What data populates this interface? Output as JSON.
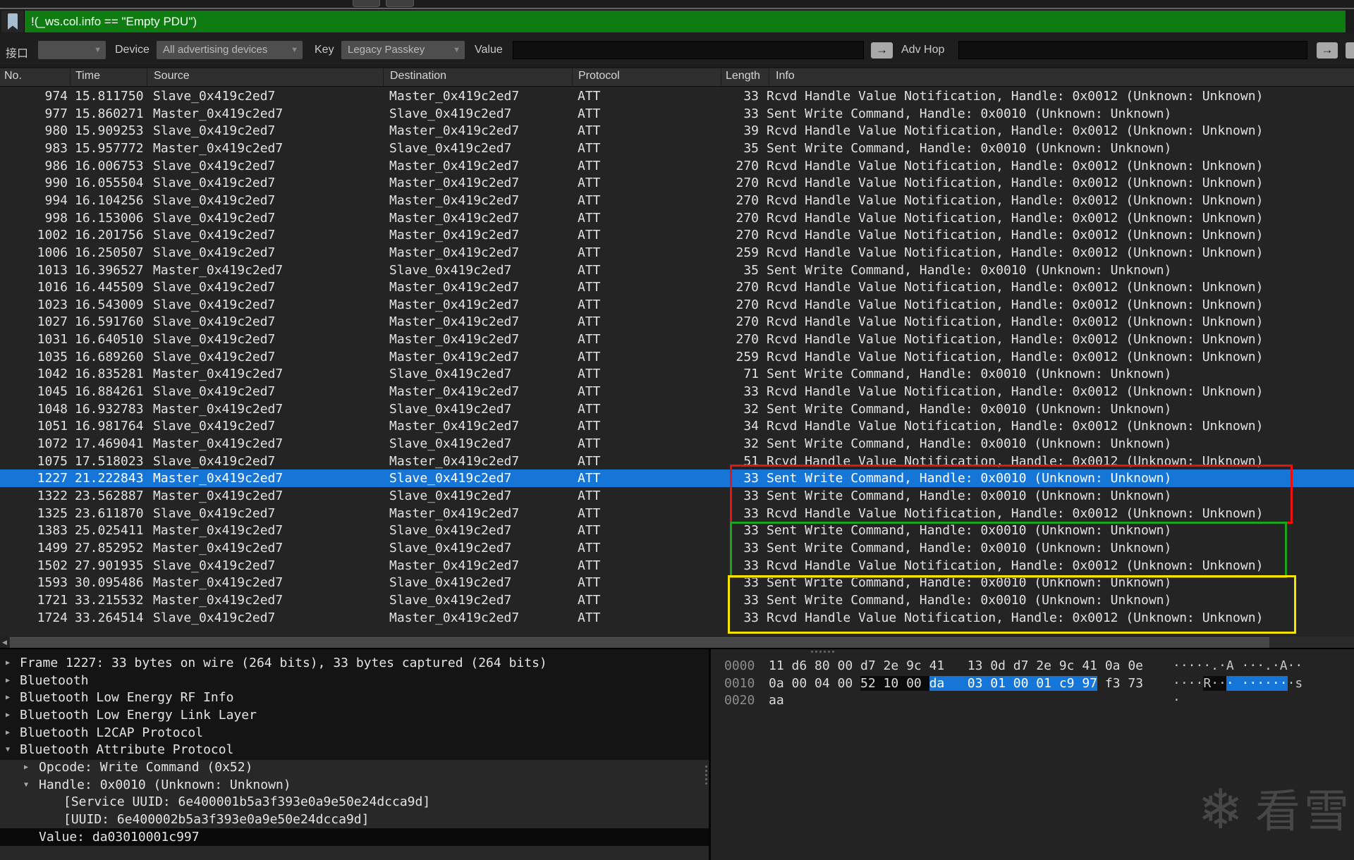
{
  "filter_bar": {
    "text": "!(_ws.col.info == \"Empty PDU\")"
  },
  "toolbar": {
    "interface_label": "接口",
    "interface_value": "",
    "device_label": "Device",
    "device_value": "All advertising devices",
    "key_label": "Key",
    "key_value": "Legacy Passkey",
    "value_label": "Value",
    "value_text": "",
    "adv_hop_label": "Adv Hop",
    "adv_hop_text": "",
    "arrow_button_glyph": "→"
  },
  "packet_list": {
    "columns": [
      "No.",
      "Time",
      "Source",
      "Destination",
      "Protocol",
      "Length",
      "Info"
    ],
    "selected_index": 22,
    "rows": [
      [
        "974",
        "15.811750",
        "Slave_0x419c2ed7",
        "Master_0x419c2ed7",
        "ATT",
        "33",
        "Rcvd Handle Value Notification, Handle: 0x0012 (Unknown: Unknown)"
      ],
      [
        "977",
        "15.860271",
        "Master_0x419c2ed7",
        "Slave_0x419c2ed7",
        "ATT",
        "33",
        "Sent Write Command, Handle: 0x0010 (Unknown: Unknown)"
      ],
      [
        "980",
        "15.909253",
        "Slave_0x419c2ed7",
        "Master_0x419c2ed7",
        "ATT",
        "39",
        "Rcvd Handle Value Notification, Handle: 0x0012 (Unknown: Unknown)"
      ],
      [
        "983",
        "15.957772",
        "Master_0x419c2ed7",
        "Slave_0x419c2ed7",
        "ATT",
        "35",
        "Sent Write Command, Handle: 0x0010 (Unknown: Unknown)"
      ],
      [
        "986",
        "16.006753",
        "Slave_0x419c2ed7",
        "Master_0x419c2ed7",
        "ATT",
        "270",
        "Rcvd Handle Value Notification, Handle: 0x0012 (Unknown: Unknown)"
      ],
      [
        "990",
        "16.055504",
        "Slave_0x419c2ed7",
        "Master_0x419c2ed7",
        "ATT",
        "270",
        "Rcvd Handle Value Notification, Handle: 0x0012 (Unknown: Unknown)"
      ],
      [
        "994",
        "16.104256",
        "Slave_0x419c2ed7",
        "Master_0x419c2ed7",
        "ATT",
        "270",
        "Rcvd Handle Value Notification, Handle: 0x0012 (Unknown: Unknown)"
      ],
      [
        "998",
        "16.153006",
        "Slave_0x419c2ed7",
        "Master_0x419c2ed7",
        "ATT",
        "270",
        "Rcvd Handle Value Notification, Handle: 0x0012 (Unknown: Unknown)"
      ],
      [
        "1002",
        "16.201756",
        "Slave_0x419c2ed7",
        "Master_0x419c2ed7",
        "ATT",
        "270",
        "Rcvd Handle Value Notification, Handle: 0x0012 (Unknown: Unknown)"
      ],
      [
        "1006",
        "16.250507",
        "Slave_0x419c2ed7",
        "Master_0x419c2ed7",
        "ATT",
        "259",
        "Rcvd Handle Value Notification, Handle: 0x0012 (Unknown: Unknown)"
      ],
      [
        "1013",
        "16.396527",
        "Master_0x419c2ed7",
        "Slave_0x419c2ed7",
        "ATT",
        "35",
        "Sent Write Command, Handle: 0x0010 (Unknown: Unknown)"
      ],
      [
        "1016",
        "16.445509",
        "Slave_0x419c2ed7",
        "Master_0x419c2ed7",
        "ATT",
        "270",
        "Rcvd Handle Value Notification, Handle: 0x0012 (Unknown: Unknown)"
      ],
      [
        "1023",
        "16.543009",
        "Slave_0x419c2ed7",
        "Master_0x419c2ed7",
        "ATT",
        "270",
        "Rcvd Handle Value Notification, Handle: 0x0012 (Unknown: Unknown)"
      ],
      [
        "1027",
        "16.591760",
        "Slave_0x419c2ed7",
        "Master_0x419c2ed7",
        "ATT",
        "270",
        "Rcvd Handle Value Notification, Handle: 0x0012 (Unknown: Unknown)"
      ],
      [
        "1031",
        "16.640510",
        "Slave_0x419c2ed7",
        "Master_0x419c2ed7",
        "ATT",
        "270",
        "Rcvd Handle Value Notification, Handle: 0x0012 (Unknown: Unknown)"
      ],
      [
        "1035",
        "16.689260",
        "Slave_0x419c2ed7",
        "Master_0x419c2ed7",
        "ATT",
        "259",
        "Rcvd Handle Value Notification, Handle: 0x0012 (Unknown: Unknown)"
      ],
      [
        "1042",
        "16.835281",
        "Master_0x419c2ed7",
        "Slave_0x419c2ed7",
        "ATT",
        "71",
        "Sent Write Command, Handle: 0x0010 (Unknown: Unknown)"
      ],
      [
        "1045",
        "16.884261",
        "Slave_0x419c2ed7",
        "Master_0x419c2ed7",
        "ATT",
        "33",
        "Rcvd Handle Value Notification, Handle: 0x0012 (Unknown: Unknown)"
      ],
      [
        "1048",
        "16.932783",
        "Master_0x419c2ed7",
        "Slave_0x419c2ed7",
        "ATT",
        "32",
        "Sent Write Command, Handle: 0x0010 (Unknown: Unknown)"
      ],
      [
        "1051",
        "16.981764",
        "Slave_0x419c2ed7",
        "Master_0x419c2ed7",
        "ATT",
        "34",
        "Rcvd Handle Value Notification, Handle: 0x0012 (Unknown: Unknown)"
      ],
      [
        "1072",
        "17.469041",
        "Master_0x419c2ed7",
        "Slave_0x419c2ed7",
        "ATT",
        "32",
        "Sent Write Command, Handle: 0x0010 (Unknown: Unknown)"
      ],
      [
        "1075",
        "17.518023",
        "Slave_0x419c2ed7",
        "Master_0x419c2ed7",
        "ATT",
        "51",
        "Rcvd Handle Value Notification, Handle: 0x0012 (Unknown: Unknown)"
      ],
      [
        "1227",
        "21.222843",
        "Master_0x419c2ed7",
        "Slave_0x419c2ed7",
        "ATT",
        "33",
        "Sent Write Command, Handle: 0x0010 (Unknown: Unknown)"
      ],
      [
        "1322",
        "23.562887",
        "Master_0x419c2ed7",
        "Slave_0x419c2ed7",
        "ATT",
        "33",
        "Sent Write Command, Handle: 0x0010 (Unknown: Unknown)"
      ],
      [
        "1325",
        "23.611870",
        "Slave_0x419c2ed7",
        "Master_0x419c2ed7",
        "ATT",
        "33",
        "Rcvd Handle Value Notification, Handle: 0x0012 (Unknown: Unknown)"
      ],
      [
        "1383",
        "25.025411",
        "Master_0x419c2ed7",
        "Slave_0x419c2ed7",
        "ATT",
        "33",
        "Sent Write Command, Handle: 0x0010 (Unknown: Unknown)"
      ],
      [
        "1499",
        "27.852952",
        "Master_0x419c2ed7",
        "Slave_0x419c2ed7",
        "ATT",
        "33",
        "Sent Write Command, Handle: 0x0010 (Unknown: Unknown)"
      ],
      [
        "1502",
        "27.901935",
        "Slave_0x419c2ed7",
        "Master_0x419c2ed7",
        "ATT",
        "33",
        "Rcvd Handle Value Notification, Handle: 0x0012 (Unknown: Unknown)"
      ],
      [
        "1593",
        "30.095486",
        "Master_0x419c2ed7",
        "Slave_0x419c2ed7",
        "ATT",
        "33",
        "Sent Write Command, Handle: 0x0010 (Unknown: Unknown)"
      ],
      [
        "1721",
        "33.215532",
        "Master_0x419c2ed7",
        "Slave_0x419c2ed7",
        "ATT",
        "33",
        "Sent Write Command, Handle: 0x0010 (Unknown: Unknown)"
      ],
      [
        "1724",
        "33.264514",
        "Slave_0x419c2ed7",
        "Master_0x419c2ed7",
        "ATT",
        "33",
        "Rcvd Handle Value Notification, Handle: 0x0012 (Unknown: Unknown)"
      ]
    ]
  },
  "annotations": {
    "red_color": "#ee0f0f",
    "green_color": "#1ea31e",
    "yellow_color": "#f7e300"
  },
  "details": {
    "lines": [
      {
        "indent": 0,
        "arrow": "collapsed",
        "text": "Frame 1227: 33 bytes on wire (264 bits), 33 bytes captured (264 bits)"
      },
      {
        "indent": 0,
        "arrow": "collapsed",
        "text": "Bluetooth"
      },
      {
        "indent": 0,
        "arrow": "collapsed",
        "text": "Bluetooth Low Energy RF Info"
      },
      {
        "indent": 0,
        "arrow": "collapsed",
        "text": "Bluetooth Low Energy Link Layer"
      },
      {
        "indent": 0,
        "arrow": "collapsed",
        "text": "Bluetooth L2CAP Protocol"
      },
      {
        "indent": 0,
        "arrow": "expanded",
        "text": "Bluetooth Attribute Protocol"
      },
      {
        "indent": 1,
        "arrow": "collapsed",
        "text": "Opcode: Write Command (0x52)"
      },
      {
        "indent": 1,
        "arrow": "expanded",
        "text": "Handle: 0x0010 (Unknown: Unknown)"
      },
      {
        "indent": 2,
        "arrow": "none",
        "text": "[Service UUID: 6e400001b5a3f393e0a9e50e24dcca9d]"
      },
      {
        "indent": 2,
        "arrow": "none",
        "text": "[UUID: 6e400002b5a3f393e0a9e50e24dcca9d]"
      },
      {
        "indent": 1,
        "arrow": "none",
        "text": "Value: da03010001c997",
        "selected": true
      }
    ]
  },
  "hexdump": {
    "selected_color": "#1576d8",
    "rows": [
      {
        "offset": "0000",
        "hex": [
          {
            "t": "11 d6 80 00 d7 2e 9c 41   13 0d d7 2e 9c 41 0a 0e",
            "c": "n"
          }
        ],
        "ascii": [
          {
            "t": "·····.·A ···.·A··",
            "c": "n"
          }
        ]
      },
      {
        "offset": "0010",
        "hex": [
          {
            "t": "0a 00 04 00 ",
            "c": "n"
          },
          {
            "t": "52 10 00 ",
            "c": "d"
          },
          {
            "t": "da   03 01 00 01 c9 97",
            "c": "b"
          },
          {
            "t": " f3 73",
            "c": "n"
          }
        ],
        "ascii": [
          {
            "t": "····",
            "c": "n"
          },
          {
            "t": "R··",
            "c": "d"
          },
          {
            "t": "· ······",
            "c": "b"
          },
          {
            "t": "·s",
            "c": "n"
          }
        ]
      },
      {
        "offset": "0020",
        "hex": [
          {
            "t": "aa",
            "c": "n"
          }
        ],
        "ascii": [
          {
            "t": "·",
            "c": "n"
          }
        ]
      }
    ]
  },
  "watermark": {
    "snowflake": "❄",
    "text": "看雪"
  }
}
